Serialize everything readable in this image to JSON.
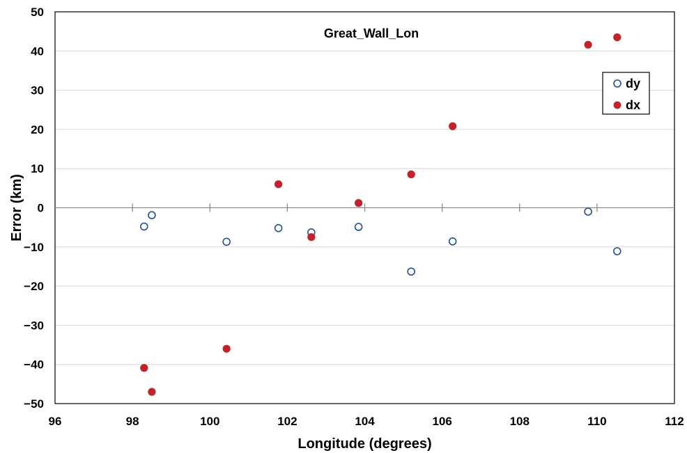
{
  "chart_data": {
    "type": "scatter",
    "title": "Great_Wall_Lon",
    "xlabel": "Longitude (degrees)",
    "ylabel": "Error (km)",
    "xlim": [
      96,
      112
    ],
    "ylim": [
      -50,
      50
    ],
    "xticks": [
      96,
      98,
      100,
      102,
      104,
      106,
      108,
      110,
      112
    ],
    "yticks": [
      -50,
      -40,
      -30,
      -20,
      -10,
      0,
      10,
      20,
      30,
      40,
      50
    ],
    "xtick_labels": [
      "96",
      "98",
      "100",
      "102",
      "104",
      "106",
      "108",
      "110",
      "112"
    ],
    "ytick_labels": [
      "−50",
      "−40",
      "−30",
      "−20",
      "−10",
      "0",
      "10",
      "20",
      "30",
      "40",
      "50"
    ],
    "grid": true,
    "legend_position": "top-right",
    "series": [
      {
        "name": "dy",
        "marker": "open-circle",
        "color": "#1f4ea3",
        "points": [
          {
            "x": 98.3,
            "y": -4.8
          },
          {
            "x": 98.5,
            "y": -1.9
          },
          {
            "x": 100.43,
            "y": -8.7
          },
          {
            "x": 101.77,
            "y": -5.2
          },
          {
            "x": 102.62,
            "y": -6.3
          },
          {
            "x": 103.84,
            "y": -4.9
          },
          {
            "x": 105.2,
            "y": -16.3
          },
          {
            "x": 106.27,
            "y": -8.6
          },
          {
            "x": 109.77,
            "y": -1.0
          },
          {
            "x": 110.52,
            "y": -11.1
          }
        ]
      },
      {
        "name": "dx",
        "marker": "filled-circle",
        "color": "#c62128",
        "points": [
          {
            "x": 98.3,
            "y": -40.9
          },
          {
            "x": 98.5,
            "y": -47.0
          },
          {
            "x": 100.43,
            "y": -36.0
          },
          {
            "x": 101.77,
            "y": 6.0
          },
          {
            "x": 102.62,
            "y": -7.5
          },
          {
            "x": 103.84,
            "y": 1.2
          },
          {
            "x": 105.2,
            "y": 8.5
          },
          {
            "x": 106.27,
            "y": 20.8
          },
          {
            "x": 109.77,
            "y": 41.6
          },
          {
            "x": 110.52,
            "y": 43.5
          }
        ]
      }
    ]
  }
}
